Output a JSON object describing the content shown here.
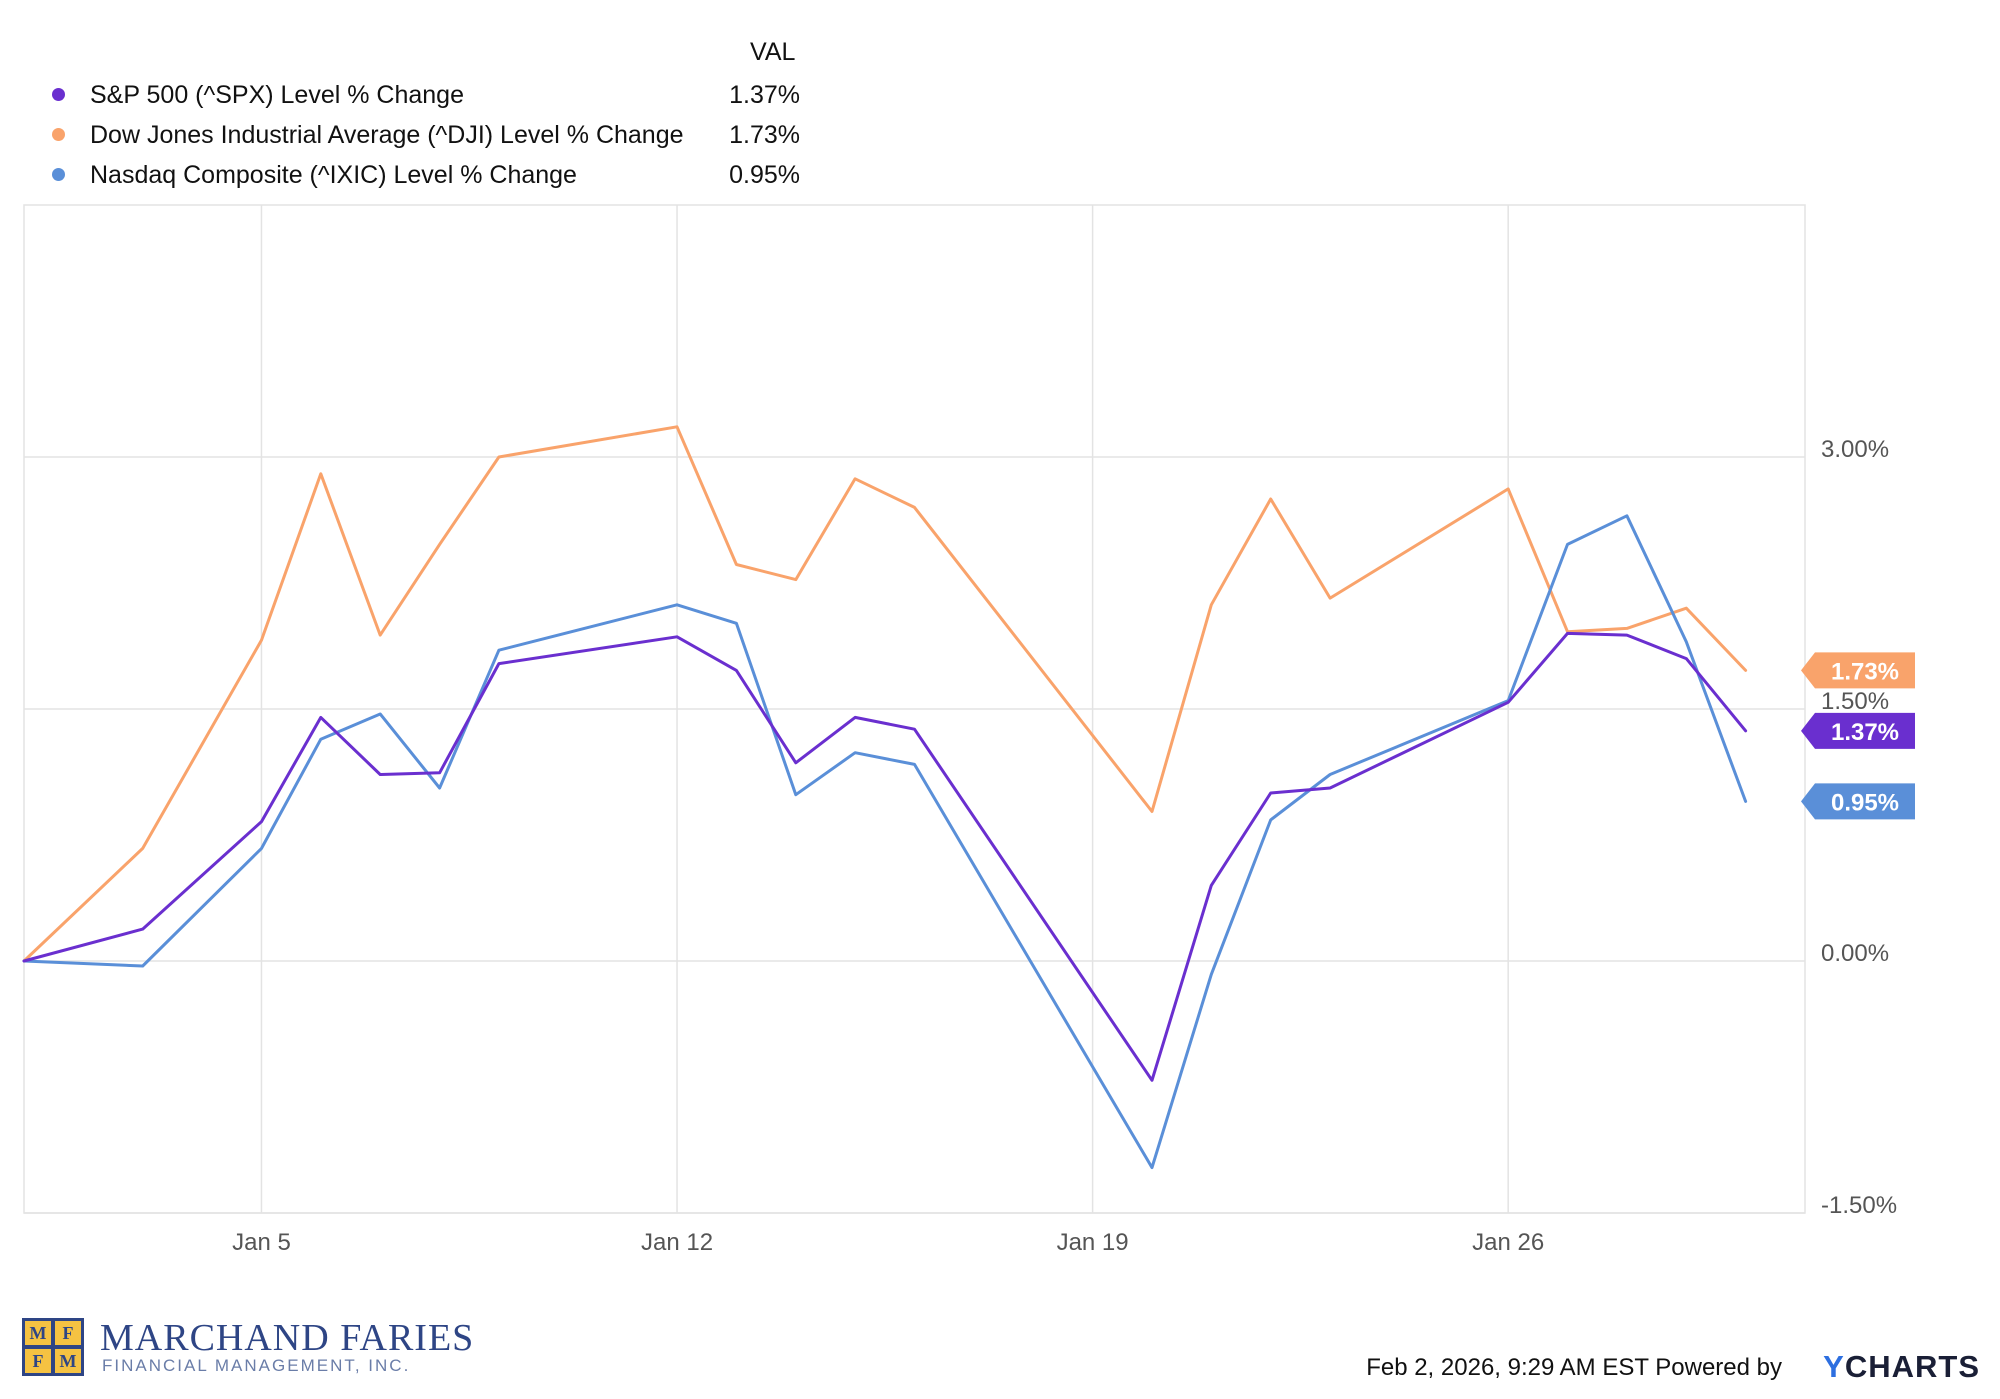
{
  "chart_data": {
    "type": "line",
    "legend_header": "VAL",
    "series": [
      {
        "name": "S&P 500 (^SPX) Level % Change",
        "color": "#6a2fcf",
        "last_value": "1.37%",
        "values": [
          0.0,
          0.19,
          0.83,
          1.45,
          1.11,
          1.12,
          1.77,
          1.93,
          1.73,
          1.18,
          1.45,
          1.38,
          -0.71,
          0.45,
          1.0,
          1.03,
          1.54,
          1.95,
          1.94,
          1.8,
          1.37
        ]
      },
      {
        "name": "Dow Jones Industrial Average (^DJI) Level % Change",
        "color": "#f9a36b",
        "last_value": "1.73%",
        "values": [
          0.0,
          0.67,
          1.91,
          2.9,
          1.94,
          2.48,
          3.0,
          3.18,
          2.36,
          2.27,
          2.87,
          2.7,
          0.89,
          2.12,
          2.75,
          2.16,
          2.81,
          1.96,
          1.98,
          2.1,
          1.73
        ]
      },
      {
        "name": "Nasdaq Composite (^IXIC) Level % Change",
        "color": "#5a8fd8",
        "last_value": "0.95%",
        "values": [
          0.0,
          -0.03,
          0.67,
          1.32,
          1.47,
          1.03,
          1.85,
          2.12,
          2.01,
          0.99,
          1.24,
          1.17,
          -1.23,
          -0.08,
          0.84,
          1.11,
          1.55,
          2.48,
          2.65,
          1.9,
          0.95
        ]
      }
    ],
    "x": [
      "2026-01-01",
      "2026-01-03",
      "2026-01-05",
      "2026-01-06",
      "2026-01-07",
      "2026-01-08",
      "2026-01-09",
      "2026-01-12",
      "2026-01-13",
      "2026-01-14",
      "2026-01-15",
      "2026-01-16",
      "2026-01-20",
      "2026-01-21",
      "2026-01-22",
      "2026-01-23",
      "2026-01-26",
      "2026-01-27",
      "2026-01-28",
      "2026-01-29",
      "2026-01-30"
    ],
    "x_ticks": [
      "Jan 5",
      "Jan 12",
      "Jan 19",
      "Jan 26"
    ],
    "y_ticks": [
      "3.00%",
      "1.50%",
      "0.00%",
      "-1.50%"
    ],
    "ylim": [
      -1.5,
      4.5
    ],
    "grid": true,
    "legend_position": "top-left"
  },
  "branding": {
    "logo_letters": [
      "M",
      "F",
      "F",
      "M"
    ],
    "company_name": "MARCHAND FARIES",
    "company_sub": "FINANCIAL MANAGEMENT, INC.",
    "timestamp": "Feb 2, 2026, 9:29 AM EST Powered by",
    "ycharts_y": "Y",
    "ycharts_rest": "CHARTS"
  },
  "colors": {
    "grid": "#e3e3e3",
    "axis_text": "#555555"
  }
}
